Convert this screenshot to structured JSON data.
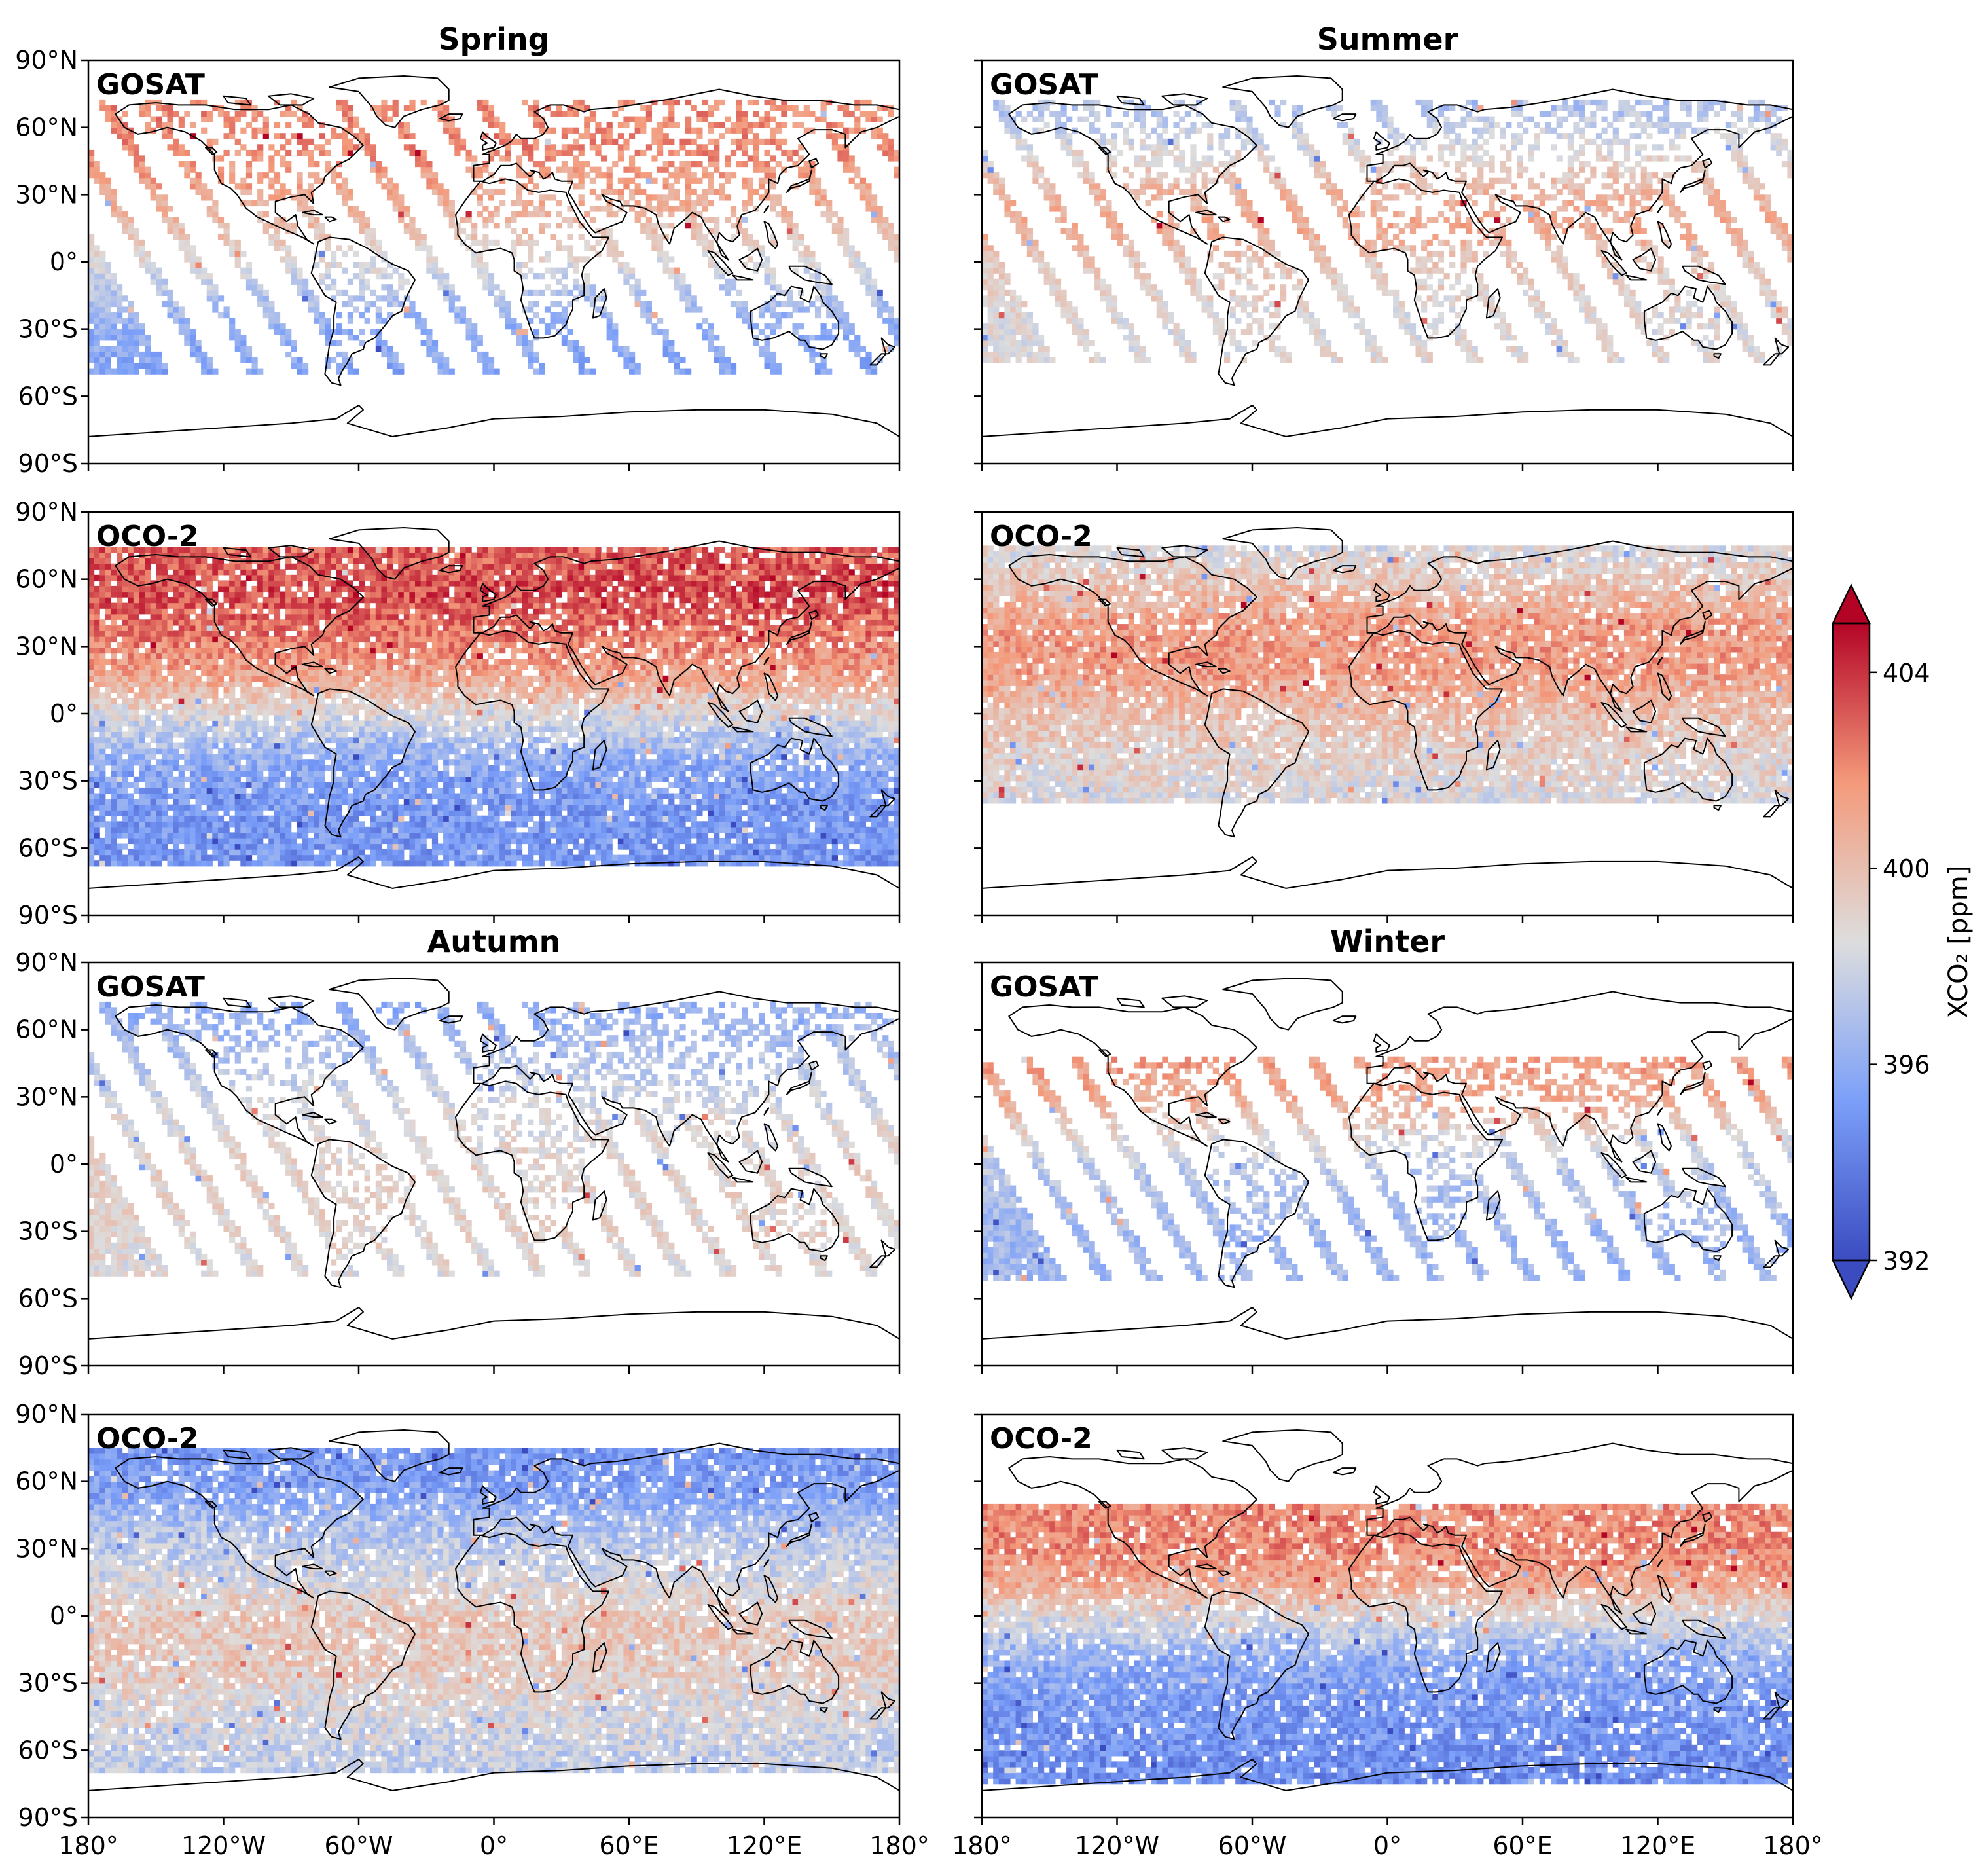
{
  "chart_data": {
    "type": "heatmap",
    "colormap": "coolwarm",
    "colorbar": {
      "label": "XCO₂ [ppm]",
      "range": [
        392,
        405
      ],
      "ticks": [
        "392",
        "396",
        "400",
        "404"
      ],
      "extend": "both",
      "colors": {
        "low": "#3b4cc0",
        "mid": "#dddddd",
        "high": "#b40426"
      }
    },
    "longitude_ticks": [
      "180°",
      "120°W",
      "60°W",
      "0°",
      "60°E",
      "120°E",
      "180°"
    ],
    "latitude_ticks": [
      "90°N",
      "60°N",
      "30°N",
      "0°",
      "30°S",
      "60°S",
      "90°S"
    ],
    "panels": [
      {
        "id": "spring-gosat",
        "season": "Spring",
        "title": "Spring",
        "satellite": "GOSAT",
        "sampling": "swaths",
        "lat_profile": [
          [
            -55,
            395.5
          ],
          [
            -30,
            396
          ],
          [
            -10,
            397.5
          ],
          [
            0,
            398.5
          ],
          [
            15,
            400
          ],
          [
            30,
            401
          ],
          [
            50,
            402
          ],
          [
            70,
            402
          ]
        ],
        "lat_range": [
          -50,
          72
        ]
      },
      {
        "id": "summer-gosat",
        "season": "Summer",
        "title": "Summer",
        "satellite": "GOSAT",
        "sampling": "swaths",
        "lat_profile": [
          [
            -55,
            399
          ],
          [
            -30,
            398.5
          ],
          [
            0,
            399.5
          ],
          [
            15,
            401
          ],
          [
            30,
            400.5
          ],
          [
            50,
            398.5
          ],
          [
            70,
            397
          ]
        ],
        "lat_range": [
          -45,
          72
        ]
      },
      {
        "id": "spring-oco2",
        "season": "Spring",
        "satellite": "OCO-2",
        "sampling": "dense",
        "lat_profile": [
          [
            -70,
            395
          ],
          [
            -40,
            395
          ],
          [
            -20,
            396
          ],
          [
            0,
            398.5
          ],
          [
            15,
            401
          ],
          [
            35,
            402.5
          ],
          [
            55,
            403.5
          ],
          [
            72,
            403
          ]
        ],
        "lat_range": [
          -68,
          73
        ]
      },
      {
        "id": "summer-oco2",
        "season": "Summer",
        "satellite": "OCO-2",
        "sampling": "dense",
        "lat_profile": [
          [
            -40,
            398.5
          ],
          [
            -20,
            399
          ],
          [
            0,
            400
          ],
          [
            20,
            401.5
          ],
          [
            40,
            401.5
          ],
          [
            55,
            400
          ],
          [
            72,
            398.5
          ]
        ],
        "lat_range": [
          -40,
          73
        ]
      },
      {
        "id": "autumn-gosat",
        "season": "Autumn",
        "title": "Autumn",
        "satellite": "GOSAT",
        "sampling": "swaths",
        "lat_profile": [
          [
            -55,
            398.5
          ],
          [
            -30,
            399
          ],
          [
            0,
            399
          ],
          [
            20,
            398.5
          ],
          [
            40,
            397.5
          ],
          [
            60,
            396.5
          ],
          [
            70,
            396
          ]
        ],
        "lat_range": [
          -50,
          72
        ]
      },
      {
        "id": "winter-gosat",
        "season": "Winter",
        "title": "Winter",
        "satellite": "GOSAT",
        "sampling": "swaths",
        "lat_profile": [
          [
            -55,
            396.5
          ],
          [
            -30,
            396.5
          ],
          [
            0,
            397.5
          ],
          [
            15,
            399
          ],
          [
            30,
            401
          ],
          [
            45,
            401.5
          ]
        ],
        "lat_range": [
          -52,
          48
        ]
      },
      {
        "id": "autumn-oco2",
        "season": "Autumn",
        "satellite": "OCO-2",
        "sampling": "dense",
        "lat_profile": [
          [
            -70,
            397.5
          ],
          [
            -40,
            398.5
          ],
          [
            -20,
            399.5
          ],
          [
            0,
            399.5
          ],
          [
            20,
            398
          ],
          [
            40,
            397
          ],
          [
            55,
            395.5
          ],
          [
            72,
            395
          ]
        ],
        "lat_range": [
          -70,
          73
        ]
      },
      {
        "id": "winter-oco2",
        "season": "Winter",
        "satellite": "OCO-2",
        "sampling": "dense",
        "lat_profile": [
          [
            -75,
            394.5
          ],
          [
            -45,
            395
          ],
          [
            -20,
            396
          ],
          [
            0,
            398.5
          ],
          [
            15,
            401
          ],
          [
            30,
            402
          ],
          [
            45,
            402
          ]
        ],
        "lat_range": [
          -75,
          50
        ]
      }
    ]
  }
}
